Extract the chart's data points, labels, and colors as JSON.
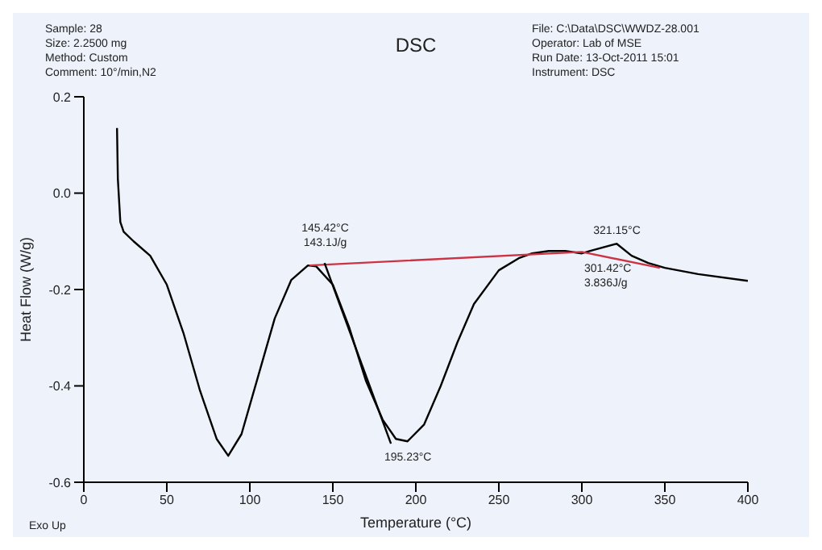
{
  "chart_data": {
    "type": "line",
    "title": "DSC",
    "xlabel": "Temperature (°C)",
    "ylabel": "Heat Flow (W/g)",
    "xlim": [
      0,
      400
    ],
    "xticks": [
      0,
      50,
      100,
      150,
      200,
      250,
      300,
      350,
      400
    ],
    "ylim": [
      -0.6,
      0.2
    ],
    "yticks": [
      {
        "value": -0.6,
        "label": "-0.6"
      },
      {
        "value": -0.4,
        "label": "-0.4"
      },
      {
        "value": -0.2,
        "label": "-0.2"
      },
      {
        "value": 0,
        "label": "0.0"
      },
      {
        "value": 0.2,
        "label": "0.2"
      }
    ],
    "marker": "none",
    "line_style": "solid",
    "series": [
      {
        "color": "#000000",
        "x": [
          20,
          20.5,
          22,
          24,
          30,
          40,
          50,
          60,
          70,
          80,
          87,
          95,
          105,
          115,
          125,
          135,
          140,
          150,
          160,
          170,
          180,
          188,
          195,
          205,
          215,
          225,
          235,
          250,
          262,
          270,
          280,
          290,
          300,
          305,
          321,
          330,
          340,
          350,
          370,
          400
        ],
        "values": [
          0.135,
          0.03,
          -0.06,
          -0.08,
          -0.1,
          -0.13,
          -0.19,
          -0.29,
          -0.41,
          -0.51,
          -0.545,
          -0.5,
          -0.38,
          -0.26,
          -0.18,
          -0.15,
          -0.152,
          -0.19,
          -0.28,
          -0.39,
          -0.47,
          -0.51,
          -0.515,
          -0.48,
          -0.4,
          -0.31,
          -0.23,
          -0.16,
          -0.135,
          -0.125,
          -0.12,
          -0.12,
          -0.125,
          -0.12,
          -0.105,
          -0.13,
          -0.145,
          -0.155,
          -0.168,
          -0.182
        ]
      },
      {
        "color": "#cc3344",
        "x": [
          136,
          300,
          347
        ],
        "values": [
          -0.15,
          -0.122,
          -0.155
        ]
      },
      {
        "color": "#000000",
        "x": [
          145,
          185
        ],
        "values": [
          -0.145,
          -0.52
        ]
      }
    ],
    "annotations": [
      "Sample: 28\nSize: 2.2500 mg\nMethod: Custom\nComment: 10°/min,N2",
      "File: C:\\Data\\DSC\\WWDZ-28.001\nOperator: Lab of MSE\nRun Date: 13-Oct-2011 15:01\nInstrument: DSC",
      "Exo Up",
      {
        "text": "145.42°C\n143.1J/g",
        "x": 145.42,
        "y": -0.15
      },
      {
        "text": "195.23°C",
        "x": 195.23,
        "y": -0.515
      },
      {
        "text": "321.15°C",
        "x": 321.15,
        "y": -0.105
      },
      {
        "text": "301.42°C\n3.836J/g",
        "x": 301.42,
        "y": -0.123
      }
    ]
  }
}
